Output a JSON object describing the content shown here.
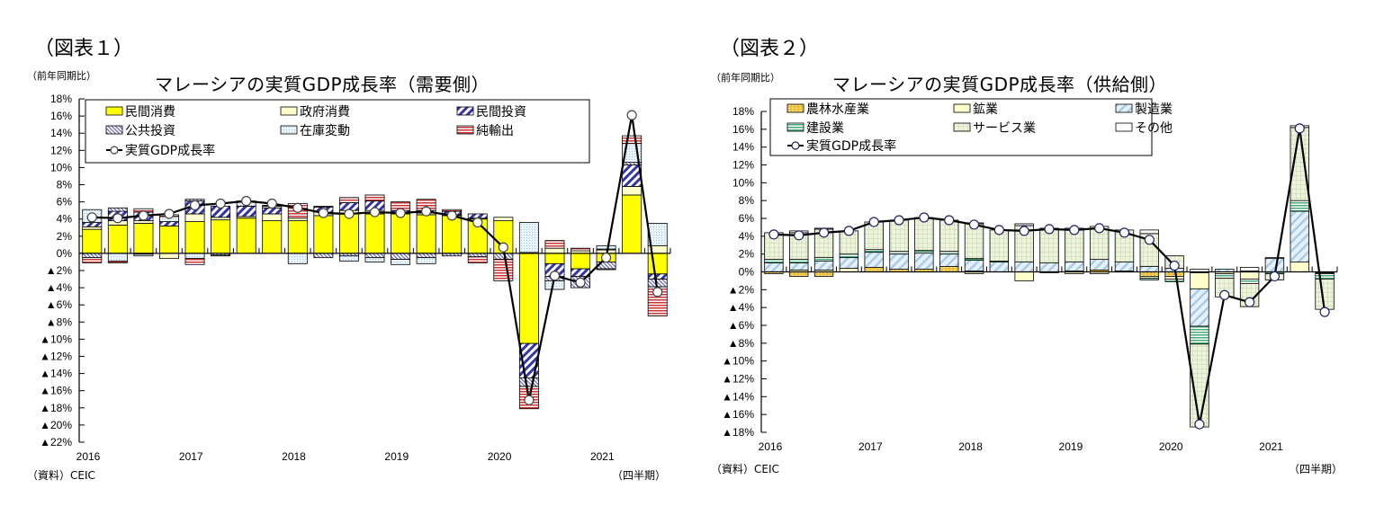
{
  "figures": [
    {
      "fig_label": "（図表１）",
      "unit_label": "（前年同期比）",
      "source": "（資料）CEIC",
      "period_label": "（四半期）"
    },
    {
      "fig_label": "（図表２）",
      "unit_label": "（前年同期比）",
      "source": "（資料）CEIC",
      "period_label": "（四半期）"
    }
  ],
  "chart_data": [
    {
      "type": "bar",
      "stacked": true,
      "title": "マレーシアの実質GDP成長率（需要側）",
      "xlabel": "（四半期）",
      "ylabel": "（前年同期比）",
      "ylim": [
        -22,
        18
      ],
      "ytick_step": 2,
      "ytick_labels": [
        "18%",
        "16%",
        "14%",
        "12%",
        "10%",
        "8%",
        "6%",
        "4%",
        "2%",
        "0%",
        "▲2%",
        "▲4%",
        "▲6%",
        "▲8%",
        "▲10%",
        "▲12%",
        "▲14%",
        "▲16%",
        "▲18%",
        "▲20%",
        "▲22%"
      ],
      "x_year_labels": [
        "2016",
        "2017",
        "2018",
        "2019",
        "2020",
        "2021"
      ],
      "categories": [
        "2016Q1",
        "2016Q2",
        "2016Q3",
        "2016Q4",
        "2017Q1",
        "2017Q2",
        "2017Q3",
        "2017Q4",
        "2018Q1",
        "2018Q2",
        "2018Q3",
        "2018Q4",
        "2019Q1",
        "2019Q2",
        "2019Q3",
        "2019Q4",
        "2020Q1",
        "2020Q2",
        "2020Q3",
        "2020Q4",
        "2021Q1",
        "2021Q2",
        "2021Q3"
      ],
      "legend_position": "top",
      "series": [
        {
          "name": "民間消費",
          "color": "#ffff00",
          "pattern": "solid",
          "values": [
            2.8,
            3.3,
            3.5,
            3.2,
            3.7,
            3.9,
            4.1,
            3.8,
            3.8,
            4.4,
            4.7,
            4.6,
            4.6,
            4.5,
            4.4,
            4.0,
            3.8,
            -10.5,
            -1.2,
            -1.8,
            -1.0,
            6.8,
            -2.4
          ]
        },
        {
          "name": "政府消費",
          "color": "#ffffcc",
          "pattern": "solid",
          "values": [
            0.3,
            0.5,
            0.3,
            -0.6,
            0.9,
            0.3,
            0.2,
            0.8,
            0.3,
            0.4,
            0.3,
            0.4,
            0.1,
            0.2,
            0.1,
            0.1,
            0.4,
            0.1,
            0.6,
            0.3,
            0.4,
            1.0,
            0.9
          ]
        },
        {
          "name": "民間投資",
          "color": "#3333aa",
          "pattern": "diagonal",
          "values": [
            0.5,
            1.1,
            1.0,
            0.5,
            1.5,
            1.3,
            1.2,
            0.7,
            0.0,
            0.6,
            0.9,
            1.1,
            0.3,
            0.3,
            0.4,
            0.5,
            0.0,
            -4.0,
            -1.5,
            -0.9,
            0.1,
            2.5,
            -0.6
          ]
        },
        {
          "name": "公共投資",
          "color": "#6666aa",
          "pattern": "back-diagonal",
          "values": [
            -0.5,
            0.4,
            -0.1,
            0.0,
            0.2,
            -0.2,
            0.0,
            0.0,
            0.0,
            -0.5,
            -0.3,
            -0.5,
            -0.7,
            -0.5,
            -0.3,
            -0.4,
            -0.7,
            -1.0,
            -0.5,
            -1.3,
            -0.8,
            0.3,
            -0.9
          ]
        },
        {
          "name": "在庫変動",
          "color": "#d6e8f2",
          "pattern": "dots",
          "values": [
            1.5,
            -0.9,
            -0.2,
            0.6,
            -0.6,
            0.0,
            0.5,
            0.2,
            -1.2,
            0.0,
            -0.6,
            -0.5,
            -0.6,
            -0.7,
            0.0,
            0.0,
            0.0,
            3.5,
            -1.0,
            0.0,
            0.4,
            2.2,
            2.6
          ]
        },
        {
          "name": "純輸出",
          "color": "#cc3333",
          "pattern": "horizontal",
          "values": [
            -0.6,
            -0.2,
            0.4,
            0.2,
            -0.7,
            -0.1,
            0.1,
            0.1,
            1.7,
            0.1,
            0.6,
            0.7,
            1.0,
            1.3,
            0.2,
            -0.7,
            -2.5,
            -2.6,
            0.9,
            0.3,
            -0.1,
            0.9,
            -3.4
          ]
        }
      ],
      "line": {
        "name": "実質GDP成長率",
        "values": [
          4.2,
          4.1,
          4.4,
          4.6,
          5.6,
          5.8,
          6.1,
          5.8,
          5.3,
          4.7,
          4.6,
          4.8,
          4.7,
          4.9,
          4.4,
          3.6,
          0.7,
          -17.1,
          -2.6,
          -3.4,
          -0.5,
          16.1,
          -4.5
        ]
      }
    },
    {
      "type": "bar",
      "stacked": true,
      "title": "マレーシアの実質GDP成長率（供給側）",
      "xlabel": "（四半期）",
      "ylabel": "（前年同期比）",
      "ylim": [
        -18,
        18
      ],
      "ytick_step": 2,
      "ytick_labels": [
        "18%",
        "16%",
        "14%",
        "12%",
        "10%",
        "8%",
        "6%",
        "4%",
        "2%",
        "0%",
        "▲2%",
        "▲4%",
        "▲6%",
        "▲8%",
        "▲10%",
        "▲12%",
        "▲14%",
        "▲16%",
        "▲18%"
      ],
      "x_year_labels": [
        "2016",
        "2017",
        "2018",
        "2019",
        "2020",
        "2021"
      ],
      "categories": [
        "2016Q1",
        "2016Q2",
        "2016Q3",
        "2016Q4",
        "2017Q1",
        "2017Q2",
        "2017Q3",
        "2017Q4",
        "2018Q1",
        "2018Q2",
        "2018Q3",
        "2018Q4",
        "2019Q1",
        "2019Q2",
        "2019Q3",
        "2019Q4",
        "2020Q1",
        "2020Q2",
        "2020Q3",
        "2020Q4",
        "2021Q1",
        "2021Q2",
        "2021Q3"
      ],
      "legend_position": "top",
      "series": [
        {
          "name": "農林水産業",
          "color": "#f0c040",
          "pattern": "dots",
          "values": [
            -0.2,
            -0.5,
            -0.5,
            0.0,
            0.5,
            0.3,
            0.3,
            0.6,
            0.1,
            0.0,
            0.0,
            -0.1,
            0.1,
            0.2,
            0.1,
            -0.5,
            -0.5,
            -0.1,
            0.0,
            0.0,
            0.0,
            0.0,
            0.0
          ]
        },
        {
          "name": "鉱業",
          "color": "#ffffcc",
          "pattern": "solid",
          "values": [
            0.0,
            0.2,
            0.2,
            0.4,
            0.0,
            0.0,
            0.0,
            0.0,
            -0.2,
            0.0,
            -1.0,
            0.0,
            -0.2,
            -0.2,
            0.0,
            -0.2,
            -0.3,
            -1.8,
            -0.2,
            -0.8,
            0.0,
            1.1,
            -0.1
          ]
        },
        {
          "name": "製造業",
          "color": "#a8cce8",
          "pattern": "diagonal",
          "values": [
            1.0,
            0.8,
            1.0,
            1.2,
            1.7,
            1.7,
            1.8,
            1.4,
            1.2,
            1.1,
            1.1,
            1.0,
            1.0,
            1.2,
            1.0,
            0.6,
            0.4,
            -4.2,
            0.3,
            0.1,
            1.5,
            5.7,
            -0.1
          ]
        },
        {
          "name": "建設業",
          "color": "#55bb88",
          "pattern": "horizontal",
          "values": [
            0.4,
            0.4,
            0.4,
            0.4,
            0.3,
            0.3,
            0.3,
            0.3,
            0.2,
            0.1,
            0.0,
            0.0,
            0.0,
            0.0,
            0.0,
            -0.2,
            -0.3,
            -2.0,
            -0.5,
            -0.5,
            -0.2,
            1.2,
            -0.6
          ]
        },
        {
          "name": "サービス業",
          "color": "#e8f0d0",
          "pattern": "grid",
          "values": [
            3.0,
            3.0,
            3.2,
            2.6,
            3.1,
            3.5,
            3.7,
            3.5,
            3.9,
            3.5,
            4.1,
            3.8,
            3.6,
            3.7,
            3.6,
            3.7,
            1.4,
            -9.3,
            -2.1,
            -2.6,
            -0.7,
            8.2,
            -3.4
          ]
        },
        {
          "name": "その他",
          "color": "#ffffff",
          "pattern": "solid",
          "values": [
            0.0,
            0.2,
            0.1,
            0.0,
            0.0,
            0.0,
            0.0,
            0.0,
            0.1,
            0.0,
            0.2,
            0.1,
            0.2,
            0.0,
            0.0,
            0.4,
            0.0,
            0.3,
            0.0,
            0.4,
            0.1,
            0.2,
            0.0
          ]
        }
      ],
      "line": {
        "name": "実質GDP成長率",
        "values": [
          4.2,
          4.1,
          4.4,
          4.6,
          5.6,
          5.8,
          6.1,
          5.8,
          5.3,
          4.7,
          4.6,
          4.8,
          4.7,
          4.9,
          4.4,
          3.6,
          0.7,
          -17.1,
          -2.6,
          -3.4,
          -0.5,
          16.1,
          -4.5
        ]
      }
    }
  ]
}
